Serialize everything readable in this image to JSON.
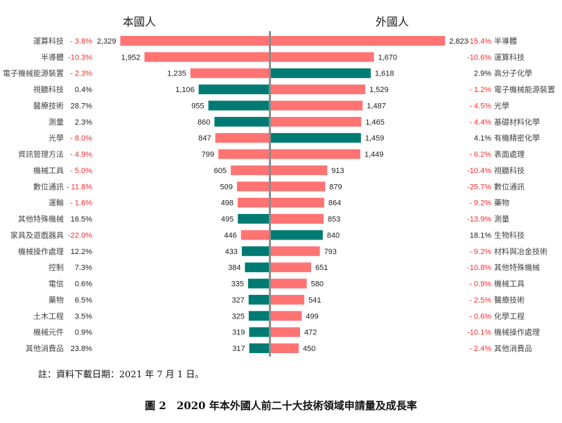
{
  "chart_data": [
    {
      "type": "bar",
      "orientation": "horizontal",
      "direction": "left",
      "title": "本國人",
      "categories": [
        "運算科技",
        "半導體",
        "電子機械能源裝置",
        "視聽科技",
        "醫療技術",
        "測量",
        "光學",
        "資訊管理方法",
        "機械工具",
        "數位通訊",
        "運輸",
        "其他特殊機械",
        "家具及遊戲器具",
        "機械操作處理",
        "控制",
        "電信",
        "藥物",
        "土木工程",
        "機械元件",
        "其他消費品"
      ],
      "values": [
        2329,
        1952,
        1235,
        1106,
        955,
        860,
        847,
        799,
        605,
        509,
        498,
        495,
        446,
        433,
        384,
        335,
        327,
        325,
        319,
        317
      ],
      "value_labels": [
        "2,329",
        "1,952",
        "1,235",
        "1,106",
        "955",
        "860",
        "847",
        "799",
        "605",
        "509",
        "498",
        "495",
        "446",
        "433",
        "384",
        "335",
        "327",
        "325",
        "319",
        "317"
      ],
      "growth": [
        "- 3.8%",
        "-10.3%",
        "- 2.3%",
        "0.4%",
        "28.7%",
        "2.3%",
        "- 8.0%",
        "- 4.9%",
        "- 5.0%",
        "- 11.8%",
        "- 1.6%",
        "16.5%",
        "-22.0%",
        "12.2%",
        "7.3%",
        "0.6%",
        "6.5%",
        "3.5%",
        "0.9%",
        "23.8%"
      ]
    },
    {
      "type": "bar",
      "orientation": "horizontal",
      "direction": "right",
      "title": "外國人",
      "categories": [
        "半導體",
        "運算科技",
        "高分子化學",
        "電子機械能源裝置",
        "光學",
        "基礎材料化學",
        "有機精密化學",
        "表面處理",
        "視聽科技",
        "數位通訊",
        "藥物",
        "測量",
        "生物科技",
        "材料與冶金技術",
        "其他特殊機械",
        "機械工具",
        "醫療技術",
        "化學工程",
        "機械操作處理",
        "其他消費品"
      ],
      "values": [
        2823,
        1670,
        1618,
        1529,
        1487,
        1465,
        1459,
        1449,
        913,
        879,
        864,
        853,
        840,
        793,
        651,
        580,
        541,
        499,
        472,
        450
      ],
      "value_labels": [
        "2,823",
        "1,670",
        "1,618",
        "1,529",
        "1,487",
        "1,465",
        "1,459",
        "1,449",
        "913",
        "879",
        "864",
        "853",
        "840",
        "793",
        "651",
        "580",
        "541",
        "499",
        "472",
        "450"
      ],
      "growth": [
        "-15.4%",
        "-10.6%",
        "2.9%",
        "- 1.2%",
        "- 4.5%",
        "- 4.4%",
        "4.1%",
        "- 6.2%",
        "-10.4%",
        "-25.7%",
        "- 9.2%",
        "-13.9%",
        "18.1%",
        "- 9.2%",
        "-10.8%",
        "- 0.9%",
        "- 2.5%",
        "- 0.6%",
        "-10.1%",
        "- 2.4%"
      ]
    }
  ],
  "colors": {
    "negative_growth": "#ff7373",
    "positive_growth": "#007b73",
    "axis": "#8c8c8c",
    "negative_text": "#ff2a2a",
    "text": "#333333"
  },
  "note": "註：資料下載日期：2021 年 7 月 1 日。",
  "caption": "圖 2　2020 年本外國人前二十大技術領域申請量及成長率"
}
